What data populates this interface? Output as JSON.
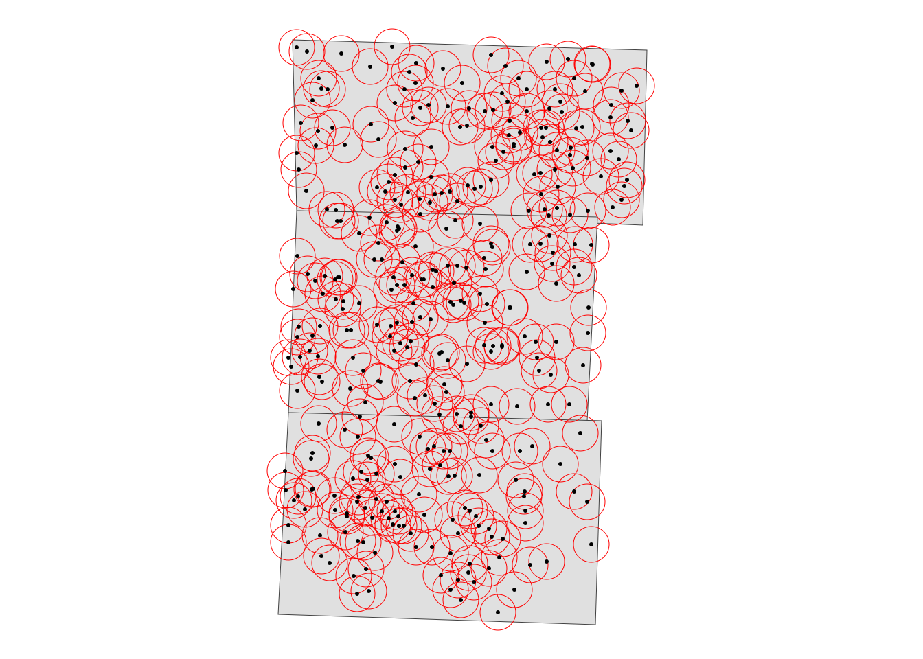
{
  "chart_data": {
    "type": "scatter",
    "title": "",
    "xlabel": "",
    "ylabel": "",
    "axes_visible": false,
    "grid": false,
    "legend": "none",
    "colors": {
      "polygon_fill": "#e0e0e0",
      "polygon_stroke": "#404040",
      "buffer_stroke": "#ff0000",
      "point_fill": "#000000"
    },
    "buffer_radius": 26,
    "polygons": [
      {
        "name": "upper",
        "vertices": [
          [
            0.0,
            0.0
          ],
          [
            17.2,
            -0.5
          ],
          [
            17.0,
            -9.0
          ],
          [
            0.2,
            -8.3
          ]
        ]
      },
      {
        "name": "middle",
        "vertices": [
          [
            0.2,
            -8.3
          ],
          [
            14.8,
            -8.6
          ],
          [
            14.3,
            -18.5
          ],
          [
            -0.2,
            -18.1
          ]
        ]
      },
      {
        "name": "lower",
        "vertices": [
          [
            -0.2,
            -18.1
          ],
          [
            15.0,
            -18.5
          ],
          [
            14.7,
            -28.4
          ],
          [
            -0.7,
            -27.9
          ]
        ]
      }
    ],
    "points": [
      [
        432,
        69
      ],
      [
        447,
        75
      ],
      [
        497,
        78
      ],
      [
        571,
        68
      ],
      [
        606,
        92
      ],
      [
        645,
        100
      ],
      [
        715,
        80
      ],
      [
        736,
        96
      ],
      [
        796,
        90
      ],
      [
        827,
        86
      ],
      [
        862,
        93
      ],
      [
        539,
        97
      ],
      [
        596,
        105
      ],
      [
        605,
        121
      ],
      [
        589,
        130
      ],
      [
        575,
        150
      ],
      [
        673,
        121
      ],
      [
        464,
        114
      ],
      [
        468,
        129
      ],
      [
        477,
        130
      ],
      [
        455,
        146
      ],
      [
        438,
        179
      ],
      [
        463,
        191
      ],
      [
        484,
        186
      ],
      [
        460,
        212
      ],
      [
        502,
        211
      ],
      [
        551,
        203
      ],
      [
        432,
        223
      ],
      [
        435,
        247
      ],
      [
        446,
        278
      ],
      [
        540,
        181
      ],
      [
        731,
        136
      ],
      [
        739,
        148
      ],
      [
        718,
        160
      ],
      [
        706,
        162
      ],
      [
        683,
        158
      ],
      [
        755,
        114
      ],
      [
        767,
        130
      ],
      [
        767,
        162
      ],
      [
        742,
        176
      ],
      [
        741,
        197
      ],
      [
        717,
        214
      ],
      [
        733,
        221
      ],
      [
        748,
        213
      ],
      [
        722,
        234
      ],
      [
        715,
        262
      ],
      [
        700,
        272
      ],
      [
        691,
        275
      ],
      [
        681,
        270
      ],
      [
        670,
        185
      ],
      [
        680,
        183
      ],
      [
        652,
        155
      ],
      [
        624,
        153
      ],
      [
        612,
        157
      ],
      [
        601,
        172
      ],
      [
        628,
        214
      ],
      [
        590,
        217
      ],
      [
        609,
        236
      ],
      [
        590,
        244
      ],
      [
        575,
        255
      ],
      [
        566,
        265
      ],
      [
        561,
        279
      ],
      [
        549,
        273
      ],
      [
        575,
        291
      ],
      [
        594,
        280
      ],
      [
        611,
        290
      ],
      [
        626,
        295
      ],
      [
        633,
        283
      ],
      [
        643,
        281
      ],
      [
        655,
        279
      ],
      [
        666,
        293
      ],
      [
        628,
        258
      ],
      [
        584,
        298
      ],
      [
        612,
        312
      ],
      [
        808,
        130
      ],
      [
        816,
        148
      ],
      [
        818,
        163
      ],
      [
        800,
        158
      ],
      [
        836,
        114
      ],
      [
        863,
        94
      ],
      [
        852,
        133
      ],
      [
        890,
        153
      ],
      [
        905,
        132
      ],
      [
        927,
        125
      ],
      [
        914,
        176
      ],
      [
        919,
        190
      ],
      [
        889,
        171
      ],
      [
        848,
        185
      ],
      [
        839,
        187
      ],
      [
        831,
        215
      ],
      [
        811,
        219
      ],
      [
        801,
        207
      ],
      [
        790,
        200
      ],
      [
        788,
        186
      ],
      [
        795,
        186
      ],
      [
        757,
        193
      ],
      [
        748,
        210
      ],
      [
        808,
        247
      ],
      [
        787,
        252
      ],
      [
        778,
        254
      ],
      [
        788,
        283
      ],
      [
        812,
        272
      ],
      [
        834,
        245
      ],
      [
        830,
        226
      ],
      [
        855,
        230
      ],
      [
        875,
        257
      ],
      [
        889,
        220
      ],
      [
        901,
        232
      ],
      [
        913,
        262
      ],
      [
        909,
        271
      ],
      [
        905,
        291
      ],
      [
        892,
        302
      ],
      [
        856,
        307
      ],
      [
        830,
        313
      ],
      [
        811,
        303
      ],
      [
        793,
        305
      ],
      [
        770,
        307
      ],
      [
        799,
        314
      ],
      [
        800,
        343
      ],
      [
        787,
        355
      ],
      [
        805,
        368
      ],
      [
        804,
        384
      ],
      [
        810,
        413
      ],
      [
        836,
        389
      ],
      [
        843,
        401
      ],
      [
        837,
        356
      ],
      [
        861,
        357
      ],
      [
        772,
        356
      ],
      [
        767,
        396
      ],
      [
        489,
        306
      ],
      [
        476,
        305
      ],
      [
        491,
        322
      ],
      [
        496,
        322
      ],
      [
        523,
        340
      ],
      [
        538,
        317
      ],
      [
        551,
        354
      ],
      [
        556,
        378
      ],
      [
        545,
        378
      ],
      [
        563,
        324
      ],
      [
        579,
        330
      ],
      [
        578,
        336
      ],
      [
        581,
        333
      ],
      [
        605,
        359
      ],
      [
        586,
        382
      ],
      [
        589,
        415
      ],
      [
        573,
        404
      ],
      [
        570,
        422
      ],
      [
        578,
        415
      ],
      [
        600,
        401
      ],
      [
        617,
        407
      ],
      [
        614,
        407
      ],
      [
        630,
        393
      ],
      [
        635,
        395
      ],
      [
        652,
        387
      ],
      [
        666,
        387
      ],
      [
        679,
        390
      ],
      [
        707,
        392
      ],
      [
        699,
        428
      ],
      [
        671,
        438
      ],
      [
        676,
        441
      ],
      [
        660,
        444
      ],
      [
        656,
        440
      ],
      [
        661,
        412
      ],
      [
        630,
        418
      ],
      [
        650,
        333
      ],
      [
        663,
        321
      ],
      [
        699,
        326
      ],
      [
        715,
        355
      ],
      [
        717,
        360
      ],
      [
        705,
        376
      ],
      [
        709,
        443
      ],
      [
        743,
        448
      ],
      [
        492,
        404
      ],
      [
        494,
        404
      ],
      [
        488,
        407
      ],
      [
        473,
        402
      ],
      [
        459,
        409
      ],
      [
        470,
        428
      ],
      [
        489,
        436
      ],
      [
        500,
        439
      ],
      [
        523,
        442
      ],
      [
        466,
        475
      ],
      [
        505,
        481
      ],
      [
        511,
        481
      ],
      [
        499,
        450
      ],
      [
        549,
        473
      ],
      [
        569,
        475
      ],
      [
        578,
        470
      ],
      [
        568,
        490
      ],
      [
        574,
        511
      ],
      [
        583,
        500
      ],
      [
        593,
        506
      ],
      [
        598,
        497
      ],
      [
        627,
        465
      ],
      [
        612,
        462
      ],
      [
        600,
        469
      ],
      [
        602,
        442
      ],
      [
        606,
        531
      ],
      [
        597,
        555
      ],
      [
        604,
        580
      ],
      [
        619,
        576
      ],
      [
        633,
        588
      ],
      [
        650,
        571
      ],
      [
        647,
        560
      ],
      [
        640,
        515
      ],
      [
        643,
        513
      ],
      [
        652,
        525
      ],
      [
        680,
        530
      ],
      [
        706,
        470
      ],
      [
        705,
        503
      ],
      [
        718,
        504
      ],
      [
        731,
        505
      ],
      [
        715,
        512
      ],
      [
        731,
        503
      ],
      [
        764,
        490
      ],
      [
        780,
        498
      ],
      [
        782,
        521
      ],
      [
        785,
        540
      ],
      [
        802,
        546
      ],
      [
        810,
        498
      ],
      [
        856,
        485
      ],
      [
        857,
        448
      ],
      [
        849,
        532
      ],
      [
        742,
        448
      ],
      [
        433,
        373
      ],
      [
        427,
        421
      ],
      [
        448,
        399
      ],
      [
        435,
        476
      ],
      [
        433,
        491
      ],
      [
        455,
        489
      ],
      [
        451,
        511
      ],
      [
        463,
        519
      ],
      [
        437,
        520
      ],
      [
        424,
        534
      ],
      [
        420,
        521
      ],
      [
        465,
        549
      ],
      [
        469,
        556
      ],
      [
        433,
        569
      ],
      [
        514,
        521
      ],
      [
        510,
        566
      ],
      [
        529,
        540
      ],
      [
        551,
        555
      ],
      [
        554,
        556
      ],
      [
        532,
        586
      ],
      [
        524,
        607
      ],
      [
        464,
        617
      ],
      [
        502,
        626
      ],
      [
        521,
        636
      ],
      [
        574,
        618
      ],
      [
        640,
        604
      ],
      [
        665,
        603
      ],
      [
        671,
        621
      ],
      [
        686,
        601
      ],
      [
        686,
        607
      ],
      [
        700,
        620
      ],
      [
        715,
        589
      ],
      [
        753,
        592
      ],
      [
        798,
        589
      ],
      [
        829,
        589
      ],
      [
        845,
        631
      ],
      [
        816,
        676
      ],
      [
        775,
        650
      ],
      [
        757,
        657
      ],
      [
        763,
        723
      ],
      [
        764,
        716
      ],
      [
        765,
        744
      ],
      [
        765,
        762
      ],
      [
        751,
        699
      ],
      [
        836,
        716
      ],
      [
        855,
        731
      ],
      [
        861,
        793
      ],
      [
        698,
        692
      ],
      [
        708,
        641
      ],
      [
        717,
        657
      ],
      [
        662,
        693
      ],
      [
        653,
        694
      ],
      [
        641,
        678
      ],
      [
        626,
        683
      ],
      [
        623,
        654
      ],
      [
        632,
        650
      ],
      [
        655,
        657
      ],
      [
        646,
        657
      ],
      [
        611,
        636
      ],
      [
        575,
        676
      ],
      [
        583,
        695
      ],
      [
        563,
        731
      ],
      [
        575,
        745
      ],
      [
        580,
        752
      ],
      [
        581,
        766
      ],
      [
        588,
        766
      ],
      [
        598,
        777
      ],
      [
        572,
        764
      ],
      [
        566,
        755
      ],
      [
        556,
        745
      ],
      [
        542,
        754
      ],
      [
        532,
        740
      ],
      [
        548,
        727
      ],
      [
        548,
        690
      ],
      [
        536,
        664
      ],
      [
        540,
        667
      ],
      [
        526,
        687
      ],
      [
        535,
        699
      ],
      [
        514,
        697
      ],
      [
        522,
        724
      ],
      [
        520,
        731
      ],
      [
        505,
        748
      ],
      [
        505,
        752
      ],
      [
        487,
        722
      ],
      [
        488,
        743
      ],
      [
        455,
        660
      ],
      [
        453,
        668
      ],
      [
        454,
        713
      ],
      [
        456,
        712
      ],
      [
        434,
        723
      ],
      [
        444,
        742
      ],
      [
        415,
        686
      ],
      [
        416,
        714
      ],
      [
        428,
        729
      ],
      [
        420,
        765
      ],
      [
        420,
        790
      ],
      [
        466,
        780
      ],
      [
        503,
        775
      ],
      [
        521,
        788
      ],
      [
        529,
        790
      ],
      [
        546,
        805
      ],
      [
        533,
        829
      ],
      [
        515,
        839
      ],
      [
        537,
        861
      ],
      [
        520,
        865
      ],
      [
        480,
        820
      ],
      [
        468,
        810
      ],
      [
        606,
        797
      ],
      [
        610,
        720
      ],
      [
        618,
        750
      ],
      [
        629,
        797
      ],
      [
        656,
        806
      ],
      [
        667,
        777
      ],
      [
        659,
        757
      ],
      [
        677,
        740
      ],
      [
        684,
        744
      ],
      [
        693,
        752
      ],
      [
        697,
        766
      ],
      [
        712,
        770
      ],
      [
        716,
        782
      ],
      [
        732,
        785
      ],
      [
        727,
        812
      ],
      [
        712,
        828
      ],
      [
        684,
        821
      ],
      [
        682,
        834
      ],
      [
        690,
        848
      ],
      [
        667,
        845
      ],
      [
        642,
        838
      ],
      [
        656,
        859
      ],
      [
        671,
        874
      ],
      [
        725,
        892
      ],
      [
        749,
        859
      ],
      [
        772,
        823
      ],
      [
        796,
        818
      ]
    ]
  }
}
